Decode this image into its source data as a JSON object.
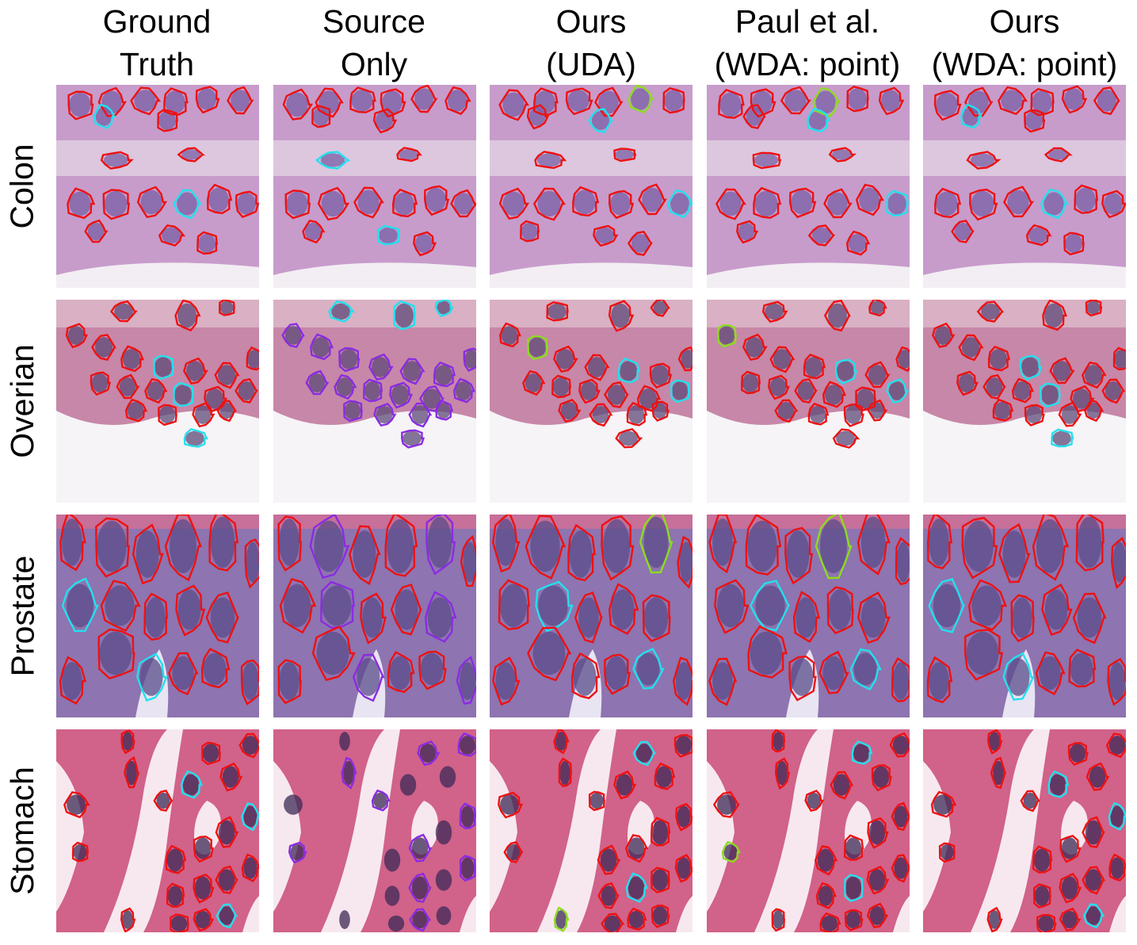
{
  "figure": {
    "columns": [
      {
        "line1": "Ground",
        "line2": "Truth"
      },
      {
        "line1": "Source",
        "line2": "Only"
      },
      {
        "line1": "Ours",
        "line2": "(UDA)"
      },
      {
        "line1": "Paul et al.",
        "line2": "(WDA: point)"
      },
      {
        "line1": "Ours",
        "line2": "(WDA: point)"
      }
    ],
    "rows": [
      {
        "label": "Colon"
      },
      {
        "label": "Overian"
      },
      {
        "label": "Prostate"
      },
      {
        "label": "Stomach"
      }
    ],
    "contour_colors": {
      "red": "#ee1111",
      "cyan": "#22e0ee",
      "purple": "#8a2be2",
      "green": "#8cdc1e"
    },
    "tissue_colors": {
      "Colon": {
        "bg": "#c79ccb",
        "nuclei": "#7a5fa6"
      },
      "Overian": {
        "bg": "#c787a8",
        "nuclei": "#5d4a78"
      },
      "Prostate": {
        "bg": "#8e74b0",
        "nuclei": "#5a4c8a"
      },
      "Stomach": {
        "bg": "#d1628a",
        "nuclei": "#3c2a55"
      }
    }
  }
}
